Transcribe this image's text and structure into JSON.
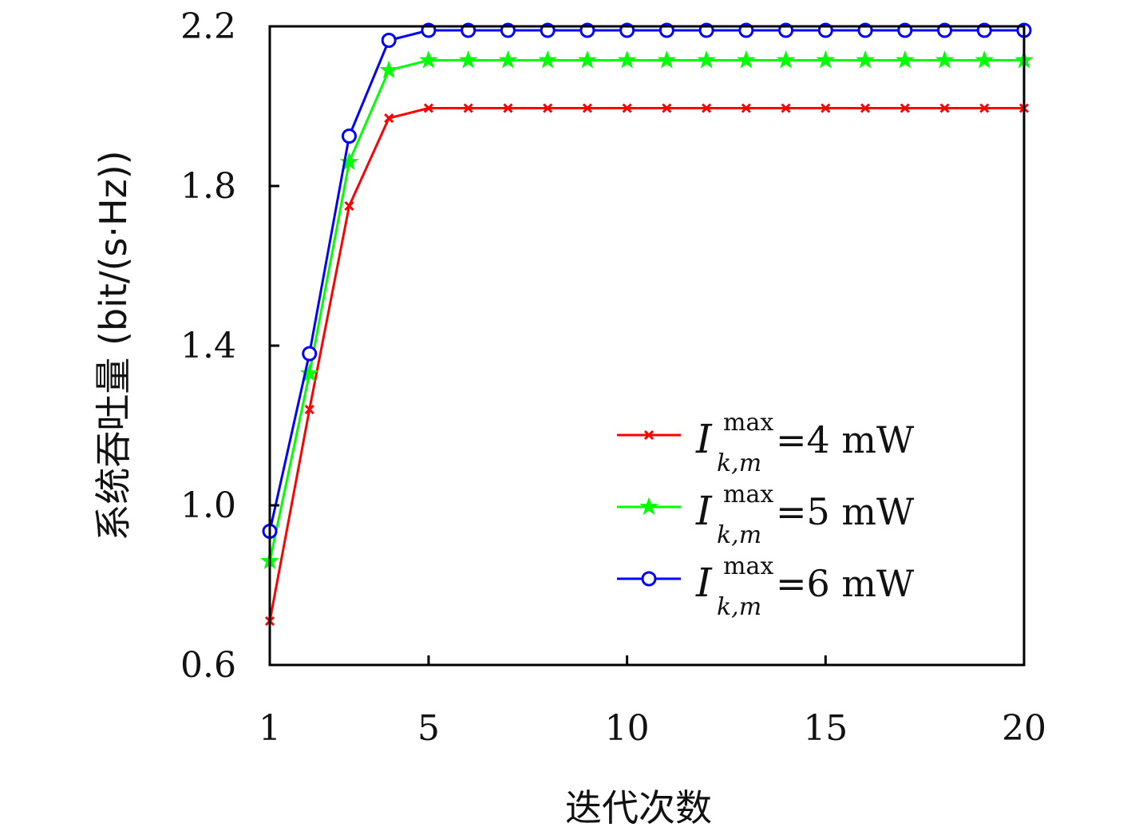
{
  "chart_data": {
    "type": "line",
    "title": "",
    "xlabel": "迭代次数",
    "ylabel": "系统吞吐量 (bit/(s·Hz))",
    "xlim": [
      1,
      20
    ],
    "ylim": [
      0.6,
      2.2
    ],
    "xticks": [
      1,
      5,
      10,
      15,
      20
    ],
    "xtick_labels": [
      "1",
      "5",
      "10",
      "15",
      "20"
    ],
    "yticks": [
      0.6,
      1.0,
      1.4,
      1.8,
      2.2
    ],
    "ytick_labels": [
      "0.6",
      "1.0",
      "1.4",
      "1.8",
      "2.2"
    ],
    "grid": false,
    "legend_position": "lower-right",
    "x": [
      1,
      2,
      3,
      4,
      5,
      6,
      7,
      8,
      9,
      10,
      11,
      12,
      13,
      14,
      15,
      16,
      17,
      18,
      19,
      20
    ],
    "series": [
      {
        "label_symbol": "I",
        "label_sup": "max",
        "label_sub": "k,m",
        "label_value": "=4 mW",
        "color": "#ff0000",
        "marker": "x",
        "values": [
          0.71,
          1.24,
          1.75,
          1.97,
          1.995,
          1.995,
          1.995,
          1.995,
          1.995,
          1.995,
          1.995,
          1.995,
          1.995,
          1.995,
          1.995,
          1.995,
          1.995,
          1.995,
          1.995,
          1.995
        ]
      },
      {
        "label_symbol": "I",
        "label_sup": "max",
        "label_sub": "k,m",
        "label_value": "=5 mW",
        "color": "#00ff00",
        "marker": "star",
        "values": [
          0.86,
          1.33,
          1.86,
          2.09,
          2.115,
          2.115,
          2.115,
          2.115,
          2.115,
          2.115,
          2.115,
          2.115,
          2.115,
          2.115,
          2.115,
          2.115,
          2.115,
          2.115,
          2.115,
          2.115
        ]
      },
      {
        "label_symbol": "I",
        "label_sup": "max",
        "label_sub": "k,m",
        "label_value": "=6 mW",
        "color": "#0000ff",
        "marker": "circle",
        "values": [
          0.935,
          1.38,
          1.925,
          2.165,
          2.19,
          2.19,
          2.19,
          2.19,
          2.19,
          2.19,
          2.19,
          2.19,
          2.19,
          2.19,
          2.19,
          2.19,
          2.19,
          2.19,
          2.19,
          2.19
        ]
      }
    ]
  }
}
